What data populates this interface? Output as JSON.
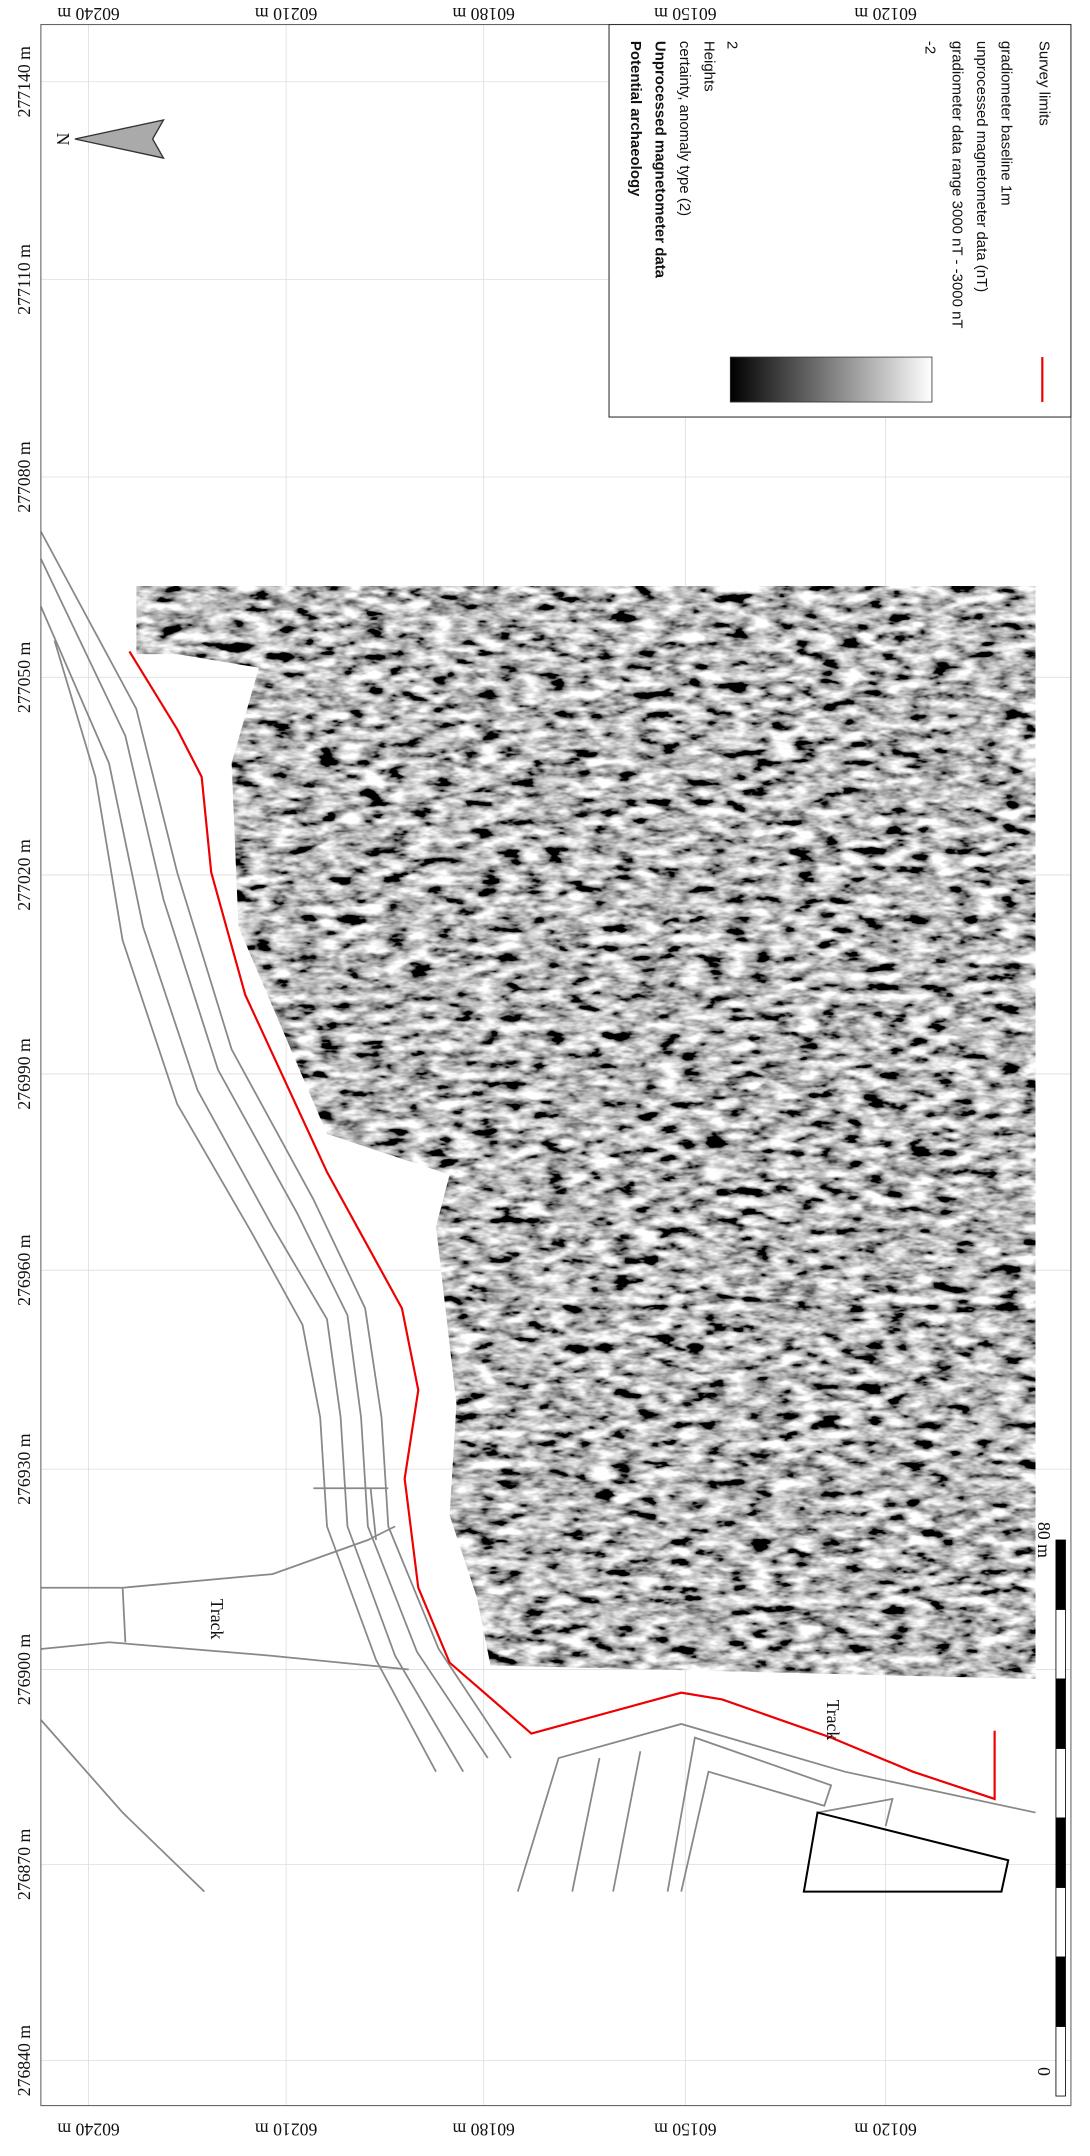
{
  "northing_labels": [
    "277140 m",
    "277110 m",
    "277080 m",
    "277050 m",
    "277020 m",
    "276990 m",
    "276960 m",
    "276930 m",
    "276900 m",
    "276870 m",
    "276840 m"
  ],
  "easting_labels_top": [
    "60240 m",
    "60210 m",
    "60180 m",
    "60150 m",
    "60120 m"
  ],
  "easting_labels_bottom": [
    "60240 m",
    "60210 m",
    "60180 m",
    "60150 m",
    "60120 m"
  ],
  "legend": {
    "title": "Potential archaeology",
    "subtitle": "Unprocessed magnetometer data",
    "certainty": "certainty, anomaly type (2)",
    "heights": "Heights",
    "high": "2",
    "low": "-2",
    "range": "gradiometer data range 3000 nT - -3000 nT",
    "data": "unprocessed magnetometer data (nT)",
    "baseline": "gradiometer baseline 1m",
    "survey": "Survey limits"
  },
  "north": "N",
  "track_labels": [
    "Track",
    "Track"
  ],
  "scale": {
    "start": "0",
    "end": "80 m"
  }
}
